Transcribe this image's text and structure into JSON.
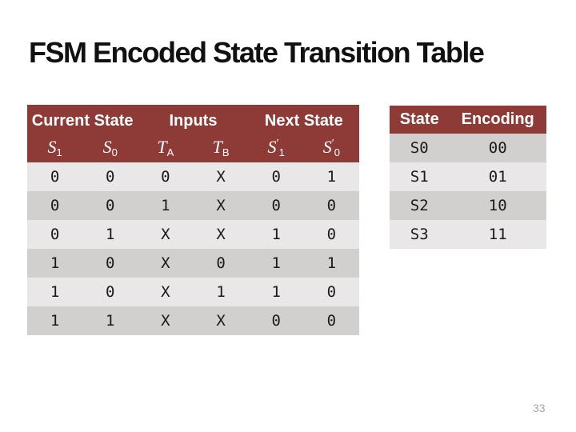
{
  "slide": {
    "title": "FSM Encoded State Transition Table",
    "page_number": "33"
  },
  "colors": {
    "header_background": "#8E3B38",
    "header_text": "#FFFFFF",
    "row_light": "#E9E7E7",
    "row_dark": "#D2CFCF",
    "body_text": "#1A1A1A",
    "title_text": "#111111",
    "page_number_text": "#A6A6A6"
  },
  "transition_table": {
    "group_headers": [
      {
        "label": "Current State",
        "span": 2
      },
      {
        "label": "Inputs",
        "span": 2
      },
      {
        "label": "Next State",
        "span": 2
      }
    ],
    "column_headers": [
      {
        "base": "S",
        "prime": "",
        "sub": "1"
      },
      {
        "base": "S",
        "prime": "",
        "sub": "0"
      },
      {
        "base": "T",
        "prime": "",
        "sub": "A"
      },
      {
        "base": "T",
        "prime": "",
        "sub": "B"
      },
      {
        "base": "S",
        "prime": "′",
        "sub": "1"
      },
      {
        "base": "S",
        "prime": "′",
        "sub": "0"
      }
    ],
    "rows": [
      [
        "0",
        "0",
        "0",
        "X",
        "0",
        "1"
      ],
      [
        "0",
        "0",
        "1",
        "X",
        "0",
        "0"
      ],
      [
        "0",
        "1",
        "X",
        "X",
        "1",
        "0"
      ],
      [
        "1",
        "0",
        "X",
        "0",
        "1",
        "1"
      ],
      [
        "1",
        "0",
        "X",
        "1",
        "1",
        "0"
      ],
      [
        "1",
        "1",
        "X",
        "X",
        "0",
        "0"
      ]
    ]
  },
  "encoding_table": {
    "headers": [
      "State",
      "Encoding"
    ],
    "rows": [
      [
        "S0",
        "00"
      ],
      [
        "S1",
        "01"
      ],
      [
        "S2",
        "10"
      ],
      [
        "S3",
        "11"
      ]
    ]
  }
}
